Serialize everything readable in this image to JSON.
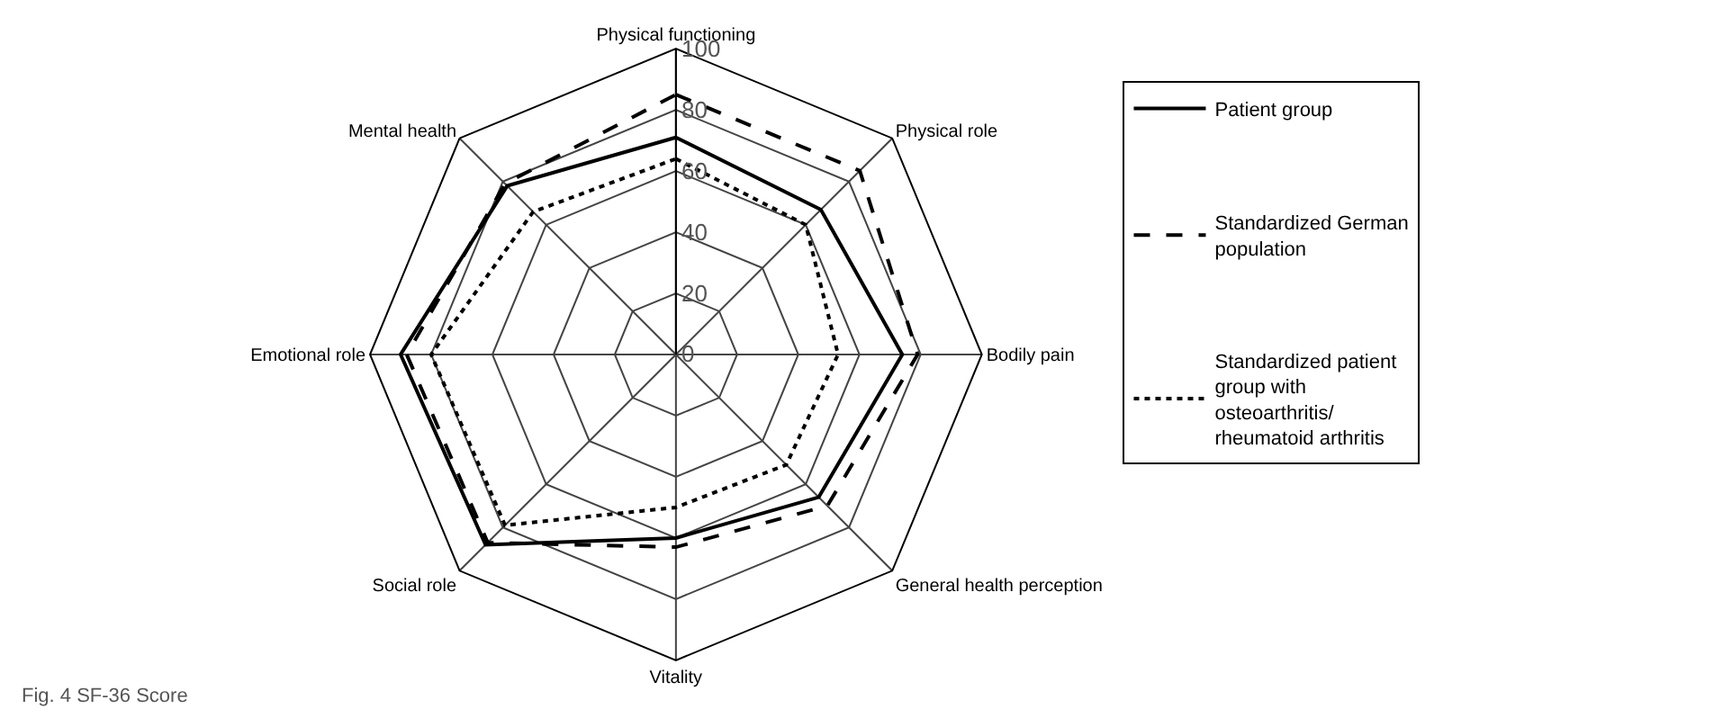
{
  "chart_data": {
    "type": "radar",
    "categories": [
      "Physical functioning",
      "Physical role",
      "Bodily pain",
      "General health perception",
      "Vitality",
      "Social role",
      "Emotional role",
      "Mental health"
    ],
    "series": [
      {
        "name": "Patient group",
        "color": "#000000",
        "line_style": "solid",
        "values": [
          71,
          67,
          74,
          66,
          60,
          88,
          90,
          78
        ]
      },
      {
        "name": "Standardized German population",
        "color": "#000000",
        "line_style": "dashed",
        "values": [
          85,
          85,
          79,
          70,
          63,
          87,
          88,
          79
        ]
      },
      {
        "name": "Standardized patient group with osteoarthritis/ rheumatoid arthritis",
        "color": "#000000",
        "line_style": "dotted",
        "values": [
          64,
          60,
          53,
          51,
          50,
          79,
          80,
          66
        ]
      }
    ],
    "ylim": [
      0,
      100
    ],
    "yticks": [
      0,
      20,
      40,
      60,
      80,
      100
    ],
    "legend": "right",
    "marker": "none",
    "annotations": [
      "Fig. 4 SF-36 Score"
    ]
  }
}
